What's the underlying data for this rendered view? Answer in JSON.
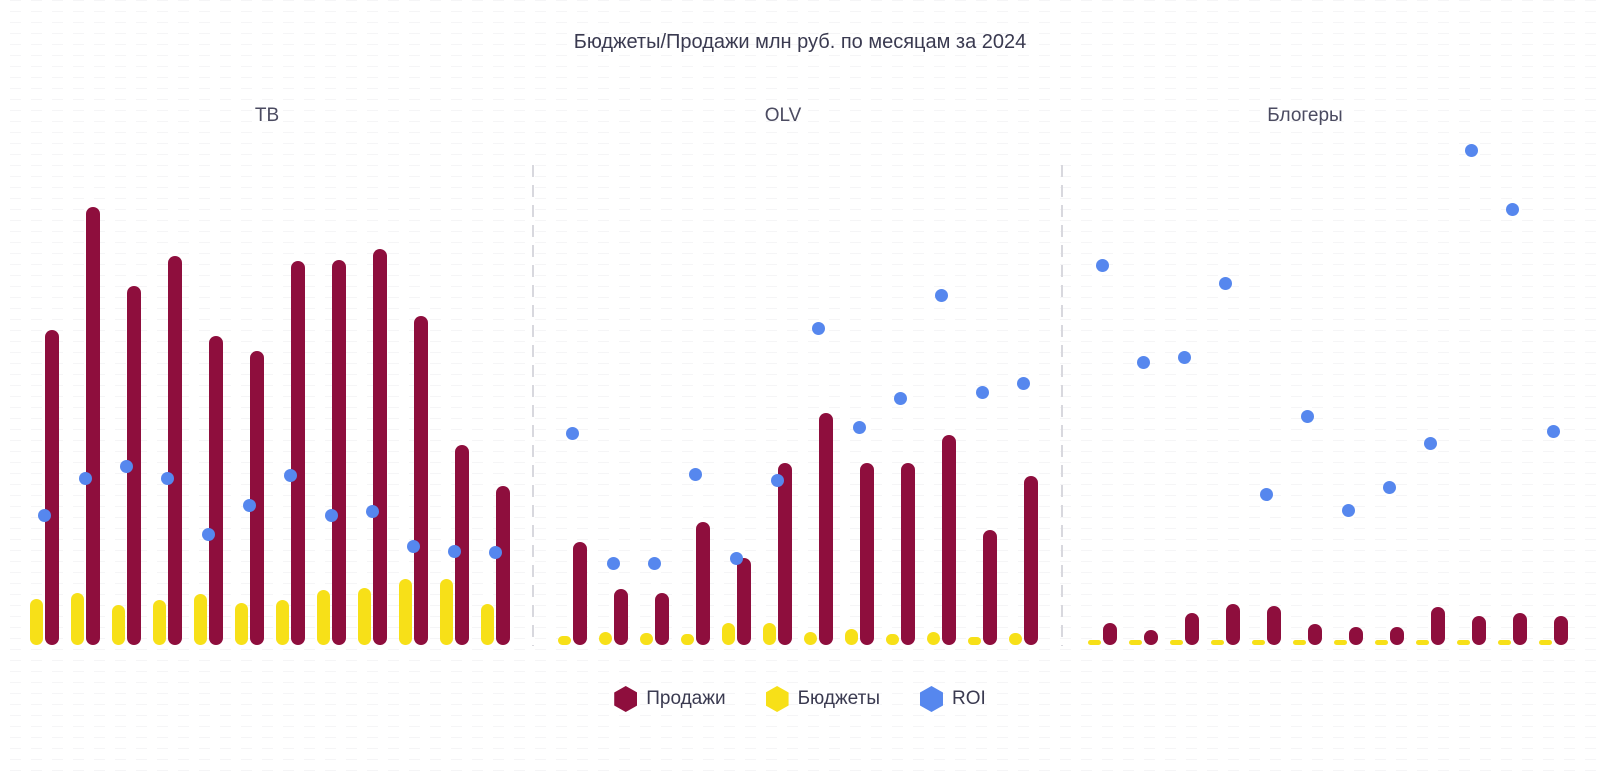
{
  "colors": {
    "sales": "#8E0E3D",
    "budgets": "#F7E018",
    "roi": "#5687EE",
    "title_text": "#3A3A50",
    "panel_title_text": "#4B4B61",
    "separator": "#D8D8DE"
  },
  "chart_data": {
    "type": "bar",
    "variant": "3 facets, each with 12 monthly groups of paired bars (Продажи, Бюджеты) plus ROI scatter dots; no numeric axes or tick labels are rendered",
    "title": "Бюджеты/Продажи млн руб. по месяцам за 2024",
    "legend_position": "bottom-center",
    "x_tick_labels_visible": false,
    "y_axis_visible": false,
    "values_unit": "relative height units (the chart shows no numeric axis labels)",
    "series_meta": [
      {
        "name": "Продажи",
        "type": "bar",
        "color": "#8E0E3D"
      },
      {
        "name": "Бюджеты",
        "type": "bar",
        "color": "#F7E018"
      },
      {
        "name": "ROI",
        "type": "scatter",
        "color": "#5687EE"
      }
    ],
    "facets": [
      {
        "title": "ТВ",
        "sales": [
          315,
          438,
          359,
          389,
          309,
          294,
          384,
          385,
          396,
          329,
          200,
          159
        ],
        "budgets": [
          46,
          52,
          40,
          45,
          51,
          42,
          45,
          55,
          57,
          66,
          66,
          41
        ],
        "roi": [
          130,
          167,
          179,
          167,
          111,
          140,
          170,
          130,
          134,
          99,
          94,
          93
        ]
      },
      {
        "title": "OLV",
        "sales": [
          103,
          56,
          52,
          123,
          87,
          182,
          232,
          182,
          182,
          210,
          115,
          169
        ],
        "budgets": [
          9,
          13,
          12,
          11,
          22,
          22,
          13,
          16,
          11,
          13,
          8,
          12
        ],
        "roi": [
          212,
          82,
          82,
          171,
          87,
          165,
          317,
          218,
          247,
          350,
          253,
          262
        ]
      },
      {
        "title": "Блогеры",
        "sales": [
          22,
          15,
          32,
          41,
          39,
          21,
          18,
          18,
          38,
          29,
          32,
          29
        ],
        "budgets": [
          5,
          5,
          5,
          5,
          5,
          5,
          5,
          5,
          5,
          5,
          5,
          5
        ],
        "roi": [
          380,
          283,
          288,
          362,
          151,
          229,
          135,
          158,
          202,
          495,
          436,
          214
        ]
      }
    ]
  }
}
